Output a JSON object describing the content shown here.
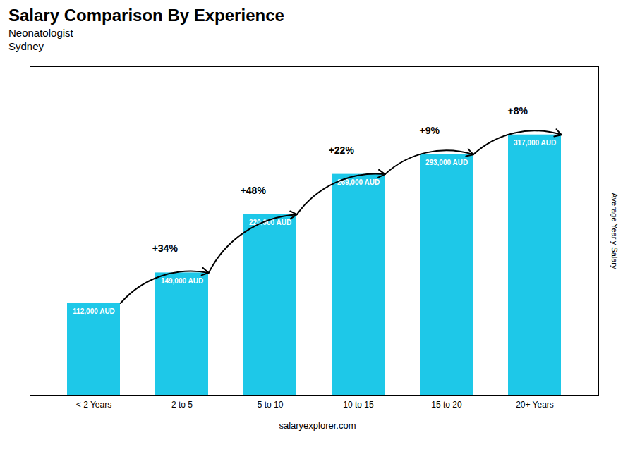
{
  "chart_data": {
    "type": "bar",
    "title": "Salary Comparison By Experience",
    "subtitle": [
      "Neonatologist",
      "Sydney"
    ],
    "caption": "salaryexplorer.com",
    "categories": [
      "< 2 Years",
      "2 to 5",
      "5 to 10",
      "10 to 15",
      "15 to 20",
      "20+ Years"
    ],
    "values": [
      112000,
      149000,
      220000,
      269000,
      293000,
      317000
    ],
    "value_labels": [
      "112,000 AUD",
      "149,000 AUD",
      "220,000 AUD",
      "269,000 AUD",
      "293,000 AUD",
      "317,000 AUD"
    ],
    "data_labels": true,
    "annotations": [
      "+34%",
      "+48%",
      "+22%",
      "+9%",
      "+8%"
    ],
    "color": "#1EC8E8",
    "ylabel": "Average Yearly Salary",
    "ylim": [
      0,
      400000
    ],
    "tick_labels": "x",
    "grid": false
  }
}
